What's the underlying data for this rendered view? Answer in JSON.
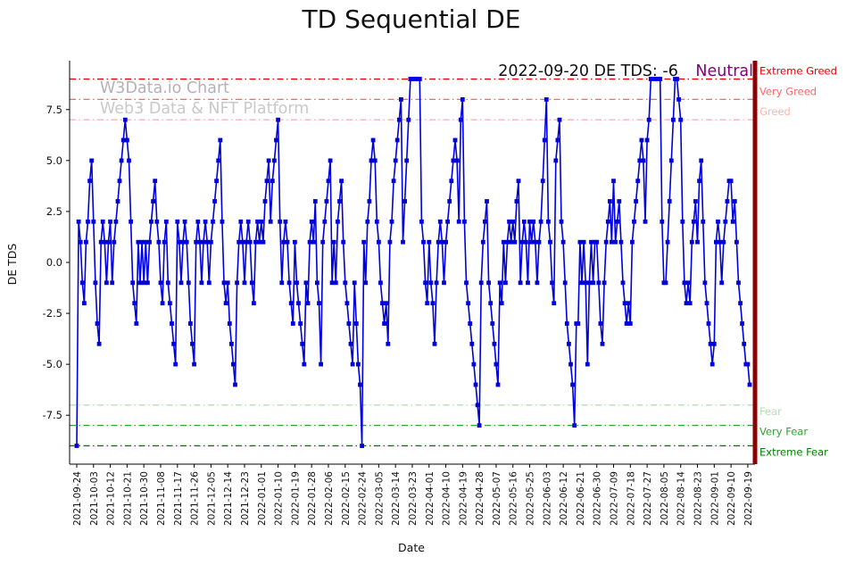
{
  "title": "TD Sequential DE",
  "watermark": {
    "line1": "W3Data.io Chart",
    "line2": "Web3 Data & NFT Platform"
  },
  "annotation": {
    "date_text": "2022-09-20 DE TDS: -6",
    "status": "Neutral",
    "status_color": "#800080"
  },
  "axes": {
    "x_label": "Date",
    "y_label": "DE TDS",
    "y_ticks": [
      {
        "v": 7.5,
        "label": "7.5"
      },
      {
        "v": 5.0,
        "label": "5.0"
      },
      {
        "v": 2.5,
        "label": "2.5"
      },
      {
        "v": 0.0,
        "label": "0.0"
      },
      {
        "v": -2.5,
        "label": "-2.5"
      },
      {
        "v": -5.0,
        "label": "-5.0"
      },
      {
        "v": -7.5,
        "label": "-7.5"
      }
    ]
  },
  "thresholds": [
    {
      "label": "Extreme Greed",
      "value": 9,
      "color": "#e60000"
    },
    {
      "label": "Very Greed",
      "value": 8,
      "color": "#ff6666"
    },
    {
      "label": "Greed",
      "value": 7,
      "color": "#ffb3b3"
    },
    {
      "label": "Fear",
      "value": -7,
      "color": "#b3e0b3"
    },
    {
      "label": "Very Fear",
      "value": -8,
      "color": "#33a333"
    },
    {
      "label": "Extreme Fear",
      "value": -9,
      "color": "#008000"
    }
  ],
  "right_edge_line_color": "#8b0000",
  "chart_data": {
    "type": "line",
    "title": "TD Sequential DE",
    "xlabel": "Date",
    "ylabel": "DE TDS",
    "ylim": [
      -9.9,
      9.9
    ],
    "grid": false,
    "legend": "none",
    "line_color": "#0000dc",
    "marker": "square",
    "start_date": "2021-09-24",
    "end_date": "2022-09-20",
    "x_tick_interval_days": 9,
    "x_tick_labels": [
      "2021-09-24",
      "2021-10-03",
      "2021-10-12",
      "2021-10-21",
      "2021-10-30",
      "2021-11-08",
      "2021-11-17",
      "2021-11-26",
      "2021-12-05",
      "2021-12-14",
      "2021-12-23",
      "2022-01-01",
      "2022-01-10",
      "2022-01-19",
      "2022-01-28",
      "2022-02-06",
      "2022-02-15",
      "2022-02-24",
      "2022-03-05",
      "2022-03-14",
      "2022-03-23",
      "2022-04-01",
      "2022-04-10",
      "2022-04-19",
      "2022-04-28",
      "2022-05-07",
      "2022-05-16",
      "2022-05-25",
      "2022-06-03",
      "2022-06-12",
      "2022-06-21",
      "2022-06-30",
      "2022-07-09",
      "2022-07-18",
      "2022-07-27",
      "2022-08-05",
      "2022-08-14",
      "2022-08-23",
      "2022-09-01",
      "2022-09-10",
      "2022-09-19"
    ],
    "values": [
      -9,
      2,
      1,
      -1,
      -2,
      1,
      2,
      4,
      5,
      2,
      -1,
      -3,
      -4,
      1,
      2,
      1,
      -1,
      1,
      2,
      -1,
      1,
      2,
      3,
      4,
      5,
      6,
      7,
      6,
      5,
      2,
      -1,
      -2,
      -3,
      1,
      -1,
      1,
      -1,
      1,
      -1,
      1,
      2,
      3,
      4,
      2,
      1,
      -1,
      -2,
      1,
      2,
      -1,
      -2,
      -3,
      -4,
      -5,
      2,
      1,
      -1,
      1,
      2,
      1,
      -1,
      -3,
      -4,
      -5,
      1,
      2,
      1,
      -1,
      1,
      2,
      1,
      -1,
      1,
      2,
      3,
      4,
      5,
      6,
      2,
      -1,
      -2,
      -1,
      -3,
      -4,
      -5,
      -6,
      -1,
      1,
      2,
      1,
      -1,
      1,
      2,
      1,
      -1,
      -2,
      1,
      2,
      1,
      2,
      1,
      3,
      4,
      5,
      2,
      4,
      5,
      6,
      7,
      2,
      -1,
      1,
      2,
      1,
      -1,
      -2,
      -3,
      1,
      -1,
      -2,
      -3,
      -4,
      -5,
      -1,
      -2,
      1,
      2,
      1,
      3,
      -1,
      -2,
      -5,
      1,
      2,
      3,
      4,
      5,
      -1,
      1,
      -1,
      2,
      3,
      4,
      1,
      -1,
      -2,
      -3,
      -4,
      -5,
      -1,
      -3,
      -5,
      -6,
      -9,
      1,
      -1,
      2,
      3,
      5,
      6,
      5,
      2,
      1,
      -1,
      -2,
      -3,
      -2,
      -4,
      1,
      2,
      4,
      5,
      6,
      7,
      8,
      1,
      3,
      5,
      7,
      9,
      9,
      9,
      9,
      9,
      9,
      2,
      1,
      -1,
      -2,
      1,
      -1,
      -2,
      -4,
      -1,
      1,
      2,
      1,
      -1,
      1,
      2,
      3,
      4,
      5,
      6,
      5,
      2,
      7,
      8,
      2,
      -1,
      -2,
      -3,
      -4,
      -5,
      -6,
      -7,
      -8,
      -1,
      1,
      2,
      3,
      -1,
      -2,
      -3,
      -4,
      -5,
      -6,
      -1,
      -2,
      1,
      -1,
      1,
      2,
      1,
      2,
      1,
      3,
      4,
      -1,
      1,
      2,
      1,
      -1,
      2,
      1,
      2,
      1,
      -1,
      1,
      2,
      4,
      6,
      8,
      2,
      1,
      -1,
      -2,
      5,
      6,
      7,
      2,
      1,
      -1,
      -3,
      -4,
      -5,
      -6,
      -8,
      -3,
      -3,
      1,
      -1,
      1,
      -1,
      -5,
      -1,
      1,
      -1,
      1,
      1,
      -1,
      -3,
      -4,
      -1,
      1,
      2,
      3,
      1,
      4,
      1,
      2,
      3,
      1,
      -1,
      -2,
      -3,
      -2,
      -3,
      1,
      2,
      3,
      4,
      5,
      6,
      5,
      2,
      6,
      7,
      9,
      9,
      9,
      9,
      9,
      9,
      2,
      -1,
      -1,
      1,
      3,
      5,
      7,
      9,
      9,
      8,
      7,
      2,
      -1,
      -2,
      -1,
      -2,
      1,
      2,
      3,
      1,
      4,
      5,
      2,
      -1,
      -2,
      -3,
      -4,
      -5,
      -4,
      1,
      2,
      1,
      -1,
      1,
      2,
      3,
      4,
      4,
      2,
      3,
      1,
      -1,
      -2,
      -3,
      -4,
      -5,
      -5,
      -6
    ]
  }
}
